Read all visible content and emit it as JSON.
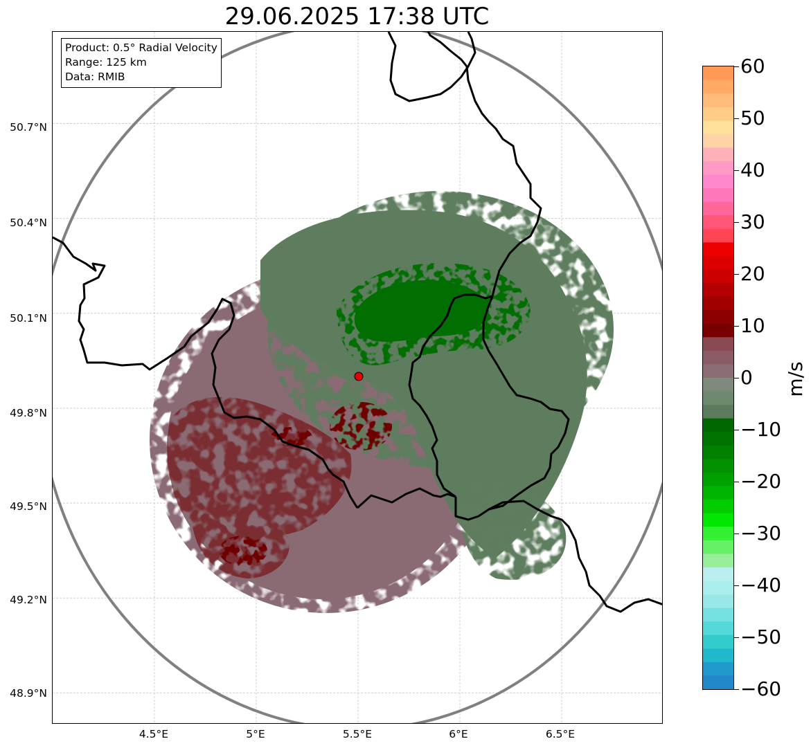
{
  "title": "29.06.2025 17:38 UTC",
  "info_box": {
    "product": "Product: 0.5° Radial Velocity",
    "range": "Range: 125 km",
    "source": "Data: RMIB"
  },
  "map": {
    "lon_range": [
      4.0,
      7.0
    ],
    "lat_range": [
      48.8,
      50.99
    ],
    "radar_site": {
      "lon": 5.505,
      "lat": 49.915
    },
    "range_ring_color": "#808080",
    "border_color": "#000000",
    "site_marker_color": "#e60000",
    "lat_ticks": [
      {
        "value": 50.7,
        "label": "50.7°N"
      },
      {
        "value": 50.4,
        "label": "50.4°N"
      },
      {
        "value": 50.1,
        "label": "50.1°N"
      },
      {
        "value": 49.8,
        "label": "49.8°N"
      },
      {
        "value": 49.5,
        "label": "49.5°N"
      },
      {
        "value": 49.2,
        "label": "49.2°N"
      },
      {
        "value": 48.9,
        "label": "48.9°N"
      }
    ],
    "lon_ticks": [
      {
        "value": 4.5,
        "label": "4.5°E"
      },
      {
        "value": 5.0,
        "label": "5°E"
      },
      {
        "value": 5.5,
        "label": "5.5°E"
      },
      {
        "value": 6.0,
        "label": "6°E"
      },
      {
        "value": 6.5,
        "label": "6.5°E"
      }
    ],
    "echo_colors": {
      "inbound_light": "#5e7d5e",
      "inbound_strong": "#006e00",
      "outbound_light": "#8a6b74",
      "outbound_strong": "#7a2e33",
      "outbound_core": "#6e0000"
    }
  },
  "colorbar": {
    "unit": "m/s",
    "range": [
      -60,
      60
    ],
    "ticks": [
      {
        "value": 60,
        "label": "60"
      },
      {
        "value": 50,
        "label": "50"
      },
      {
        "value": 40,
        "label": "40"
      },
      {
        "value": 30,
        "label": "30"
      },
      {
        "value": 20,
        "label": "20"
      },
      {
        "value": 10,
        "label": "10"
      },
      {
        "value": 0,
        "label": "0"
      },
      {
        "value": -10,
        "label": "−10"
      },
      {
        "value": -20,
        "label": "−20"
      },
      {
        "value": -30,
        "label": "−30"
      },
      {
        "value": -40,
        "label": "−40"
      },
      {
        "value": -50,
        "label": "−50"
      },
      {
        "value": -60,
        "label": "−60"
      }
    ],
    "colors_top_to_bottom": [
      "#ff9955",
      "#ffab66",
      "#ffbb77",
      "#ffcc88",
      "#ffe09a",
      "#ffd2a8",
      "#ffb0b8",
      "#ff9ac6",
      "#ff88cc",
      "#ff77bb",
      "#ff6699",
      "#ff5577",
      "#ff4455",
      "#ee0000",
      "#dd0000",
      "#cc0000",
      "#b40000",
      "#a00000",
      "#8c0000",
      "#780000",
      "#8a4a52",
      "#8a5c66",
      "#8b6d74",
      "#7f8a7c",
      "#6e8a6e",
      "#5c7a5c",
      "#006600",
      "#007400",
      "#008200",
      "#009000",
      "#00a000",
      "#00b400",
      "#00cc00",
      "#00e600",
      "#33f033",
      "#66f066",
      "#99ee99",
      "#bbeeee",
      "#aaeeee",
      "#99e8e8",
      "#77e0e0",
      "#55d8d8",
      "#33cccc",
      "#22b8cc",
      "#2299cc",
      "#2288c8"
    ]
  }
}
